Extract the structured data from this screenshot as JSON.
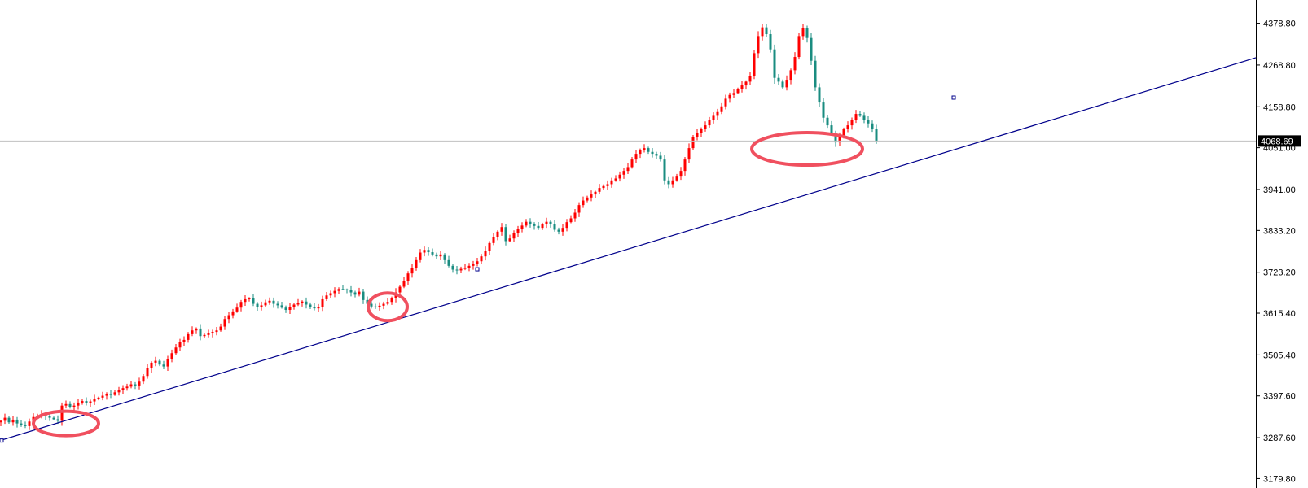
{
  "chart_data": {
    "type": "candlestick",
    "title": "",
    "xlabel": "",
    "ylabel": "",
    "ylim": [
      3155,
      4440
    ],
    "grid": false,
    "y_ticks": [
      "4378.80",
      "4268.80",
      "4158.80",
      "4051.00",
      "3941.00",
      "3833.20",
      "3723.20",
      "3615.40",
      "3505.40",
      "3397.60",
      "3287.60",
      "3179.80"
    ],
    "current_price": "4068.69",
    "trendline": {
      "start_value": 3280,
      "end_value": 4288
    },
    "anchor_markers": [
      {
        "x_index": 0,
        "value": 3280
      },
      {
        "x_index": 117,
        "value": 3731
      },
      {
        "x_index": 234,
        "value": 4183
      }
    ],
    "highlight_ellipses": [
      {
        "x_index": 14,
        "value": 3325
      },
      {
        "x_index": 93,
        "value": 3632
      },
      {
        "x_index": 196,
        "value": 4048
      }
    ],
    "up_color": "#ff0000",
    "down_color": "#1a8c80",
    "trendline_color": "#00008b",
    "highlight_color": "#f0505f",
    "closes": [
      3332,
      3340,
      3328,
      3335,
      3325,
      3322,
      3318,
      3330,
      3342,
      3345,
      3350,
      3345,
      3340,
      3336,
      3332,
      3372,
      3376,
      3368,
      3372,
      3380,
      3384,
      3378,
      3383,
      3390,
      3393,
      3398,
      3403,
      3400,
      3407,
      3412,
      3418,
      3422,
      3428,
      3425,
      3435,
      3450,
      3470,
      3485,
      3490,
      3480,
      3475,
      3495,
      3510,
      3525,
      3540,
      3545,
      3560,
      3570,
      3575,
      3555,
      3558,
      3562,
      3566,
      3570,
      3580,
      3600,
      3610,
      3620,
      3630,
      3645,
      3652,
      3655,
      3640,
      3632,
      3636,
      3644,
      3648,
      3640,
      3636,
      3630,
      3624,
      3632,
      3638,
      3642,
      3646,
      3638,
      3632,
      3628,
      3632,
      3652,
      3662,
      3668,
      3674,
      3679,
      3678,
      3676,
      3670,
      3664,
      3672,
      3650,
      3640,
      3633,
      3632,
      3635,
      3640,
      3645,
      3655,
      3670,
      3685,
      3700,
      3720,
      3735,
      3755,
      3775,
      3782,
      3776,
      3770,
      3765,
      3770,
      3755,
      3740,
      3730,
      3728,
      3732,
      3735,
      3740,
      3745,
      3752,
      3765,
      3780,
      3800,
      3815,
      3830,
      3842,
      3805,
      3812,
      3826,
      3836,
      3846,
      3856,
      3850,
      3845,
      3840,
      3850,
      3856,
      3850,
      3835,
      3830,
      3840,
      3855,
      3865,
      3880,
      3900,
      3912,
      3920,
      3928,
      3935,
      3945,
      3950,
      3955,
      3965,
      3970,
      3980,
      3990,
      4000,
      4020,
      4035,
      4045,
      4050,
      4040,
      4035,
      4030,
      4020,
      3965,
      3955,
      3965,
      3975,
      3990,
      4020,
      4050,
      4080,
      4090,
      4100,
      4110,
      4125,
      4135,
      4145,
      4160,
      4180,
      4190,
      4195,
      4205,
      4215,
      4225,
      4240,
      4300,
      4345,
      4368,
      4350,
      4310,
      4235,
      4225,
      4210,
      4230,
      4255,
      4290,
      4345,
      4365,
      4340,
      4280,
      4210,
      4170,
      4130,
      4110,
      4090,
      4065,
      4080,
      4100,
      4110,
      4125,
      4140,
      4135,
      4125,
      4115,
      4100,
      4068
    ]
  }
}
